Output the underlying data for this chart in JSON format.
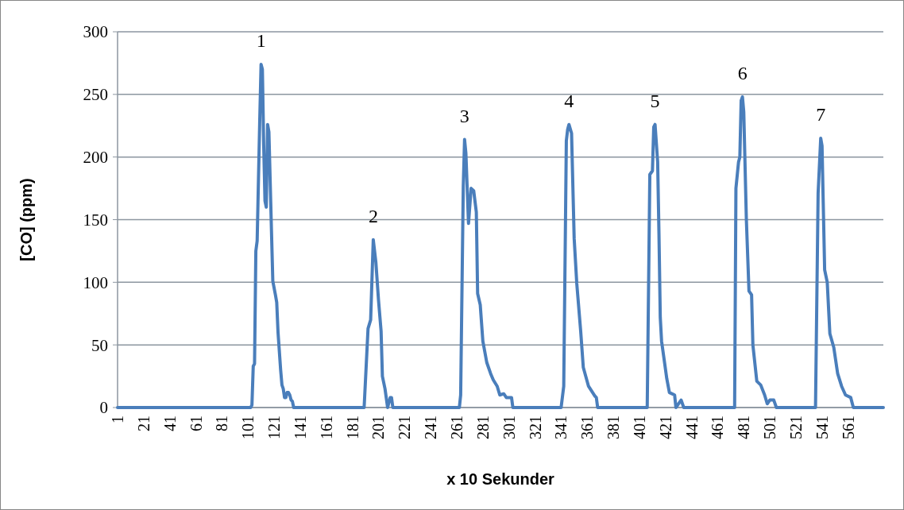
{
  "chart_data": {
    "type": "line",
    "xlabel": "x 10 Sekunder",
    "ylabel": "[CO] (ppm)",
    "xlim": [
      1,
      588
    ],
    "xticks": [
      1,
      21,
      41,
      61,
      81,
      101,
      121,
      141,
      161,
      181,
      201,
      221,
      241,
      261,
      281,
      301,
      321,
      341,
      361,
      381,
      401,
      421,
      441,
      461,
      481,
      501,
      521,
      541,
      561
    ],
    "ylim": [
      0,
      300
    ],
    "yticks": [
      0,
      50,
      100,
      150,
      200,
      250,
      300
    ],
    "grid": "y",
    "marker": "none",
    "line_style": "solid",
    "series": [
      {
        "color": "#4a7ebb",
        "x": [
          1,
          103,
          104,
          105,
          106,
          107,
          108,
          110,
          111,
          112,
          113,
          114,
          115,
          116,
          117,
          118,
          119,
          120,
          122,
          123,
          124,
          126,
          127,
          128,
          129,
          130,
          131,
          132,
          133,
          134,
          135,
          136,
          190,
          193,
          195,
          197,
          199,
          201,
          203,
          204,
          206,
          208,
          210,
          211,
          212,
          263,
          264,
          266,
          267,
          268,
          270,
          272,
          274,
          276,
          277,
          279,
          281,
          284,
          287,
          289,
          292,
          294,
          297,
          299,
          303,
          304,
          341,
          343,
          345,
          346,
          347,
          349,
          351,
          353,
          356,
          358,
          362,
          367,
          368,
          369,
          407,
          409,
          411,
          412,
          413,
          415,
          416,
          417,
          418,
          420,
          422,
          424,
          428,
          429,
          433,
          435,
          474,
          475,
          477,
          478,
          479,
          480,
          481,
          483,
          485,
          487,
          488,
          491,
          494,
          497,
          499,
          501,
          504,
          506,
          536,
          538,
          540,
          541,
          543,
          545,
          547,
          550,
          553,
          556,
          559,
          563,
          565,
          588
        ],
        "values": [
          0,
          0,
          2,
          33,
          35,
          125,
          133,
          230,
          274,
          270,
          210,
          165,
          160,
          226,
          220,
          180,
          140,
          101,
          90,
          84,
          60,
          30,
          18,
          15,
          8,
          8,
          12,
          12,
          10,
          6,
          5,
          0,
          0,
          63,
          70,
          134,
          116,
          86,
          61,
          25,
          15,
          0,
          8,
          8,
          0,
          0,
          10,
          177,
          214,
          203,
          147,
          175,
          173,
          156,
          91,
          82,
          53,
          36,
          27,
          22,
          17,
          10,
          11,
          8,
          8,
          0,
          0,
          17,
          213,
          222,
          226,
          219,
          135,
          99,
          61,
          32,
          17,
          9,
          8,
          0,
          0,
          186,
          189,
          224,
          226,
          196,
          139,
          72,
          53,
          38,
          23,
          12,
          10,
          0,
          6,
          0,
          0,
          175,
          196,
          200,
          245,
          248,
          236,
          150,
          93,
          90,
          50,
          21,
          18,
          10,
          3,
          6,
          6,
          0,
          0,
          171,
          215,
          209,
          110,
          100,
          59,
          48,
          27,
          17,
          10,
          8,
          0,
          0
        ]
      }
    ],
    "annotations": [
      "1",
      "2",
      "3",
      "4",
      "5",
      "6",
      "7"
    ]
  }
}
